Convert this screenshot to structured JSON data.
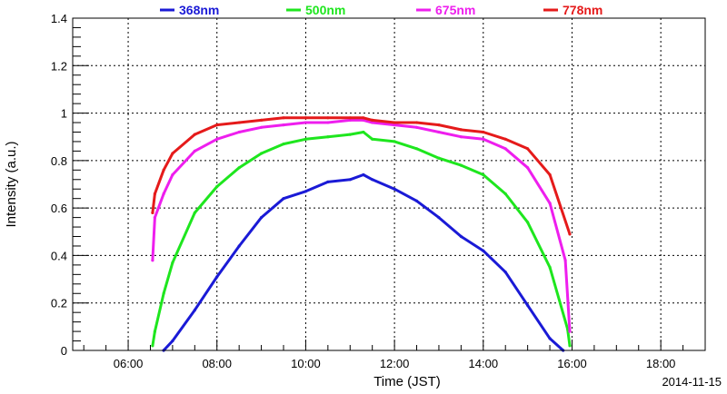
{
  "chart_data": {
    "type": "line",
    "xlabel": "Time (JST)",
    "ylabel": "Intensity (a.u.)",
    "date_label": "2014-11-15",
    "x_axis": {
      "min_hour": 4.75,
      "max_hour": 19.0,
      "ticks": [
        {
          "hour": 6,
          "label": "06:00"
        },
        {
          "hour": 8,
          "label": "08:00"
        },
        {
          "hour": 10,
          "label": "10:00"
        },
        {
          "hour": 12,
          "label": "12:00"
        },
        {
          "hour": 14,
          "label": "14:00"
        },
        {
          "hour": 16,
          "label": "16:00"
        },
        {
          "hour": 18,
          "label": "18:00"
        }
      ]
    },
    "y_axis": {
      "min": 0,
      "max": 1.4,
      "ticks": [
        {
          "value": 0,
          "label": "0"
        },
        {
          "value": 0.2,
          "label": "0.2"
        },
        {
          "value": 0.4,
          "label": "0.4"
        },
        {
          "value": 0.6,
          "label": "0.6"
        },
        {
          "value": 0.8,
          "label": "0.8"
        },
        {
          "value": 1.0,
          "label": "1"
        },
        {
          "value": 1.2,
          "label": "1.2"
        },
        {
          "value": 1.4,
          "label": "1.4"
        }
      ]
    },
    "grid": true,
    "legend_position": "top",
    "series": [
      {
        "name": "368nm",
        "color": "#1a1ad6",
        "points": [
          [
            6.8,
            0.0
          ],
          [
            7.0,
            0.04
          ],
          [
            7.5,
            0.17
          ],
          [
            8.0,
            0.31
          ],
          [
            8.5,
            0.44
          ],
          [
            9.0,
            0.56
          ],
          [
            9.5,
            0.64
          ],
          [
            10.0,
            0.67
          ],
          [
            10.5,
            0.71
          ],
          [
            11.0,
            0.72
          ],
          [
            11.3,
            0.74
          ],
          [
            11.5,
            0.72
          ],
          [
            12.0,
            0.68
          ],
          [
            12.5,
            0.63
          ],
          [
            13.0,
            0.56
          ],
          [
            13.5,
            0.48
          ],
          [
            14.0,
            0.42
          ],
          [
            14.5,
            0.33
          ],
          [
            15.0,
            0.19
          ],
          [
            15.5,
            0.05
          ],
          [
            15.8,
            0.0
          ]
        ]
      },
      {
        "name": "500nm",
        "color": "#1ee61e",
        "points": [
          [
            6.55,
            0.02
          ],
          [
            6.6,
            0.08
          ],
          [
            6.8,
            0.24
          ],
          [
            7.0,
            0.37
          ],
          [
            7.5,
            0.58
          ],
          [
            8.0,
            0.69
          ],
          [
            8.5,
            0.77
          ],
          [
            9.0,
            0.83
          ],
          [
            9.5,
            0.87
          ],
          [
            10.0,
            0.89
          ],
          [
            10.5,
            0.9
          ],
          [
            11.0,
            0.91
          ],
          [
            11.3,
            0.92
          ],
          [
            11.5,
            0.89
          ],
          [
            12.0,
            0.88
          ],
          [
            12.5,
            0.85
          ],
          [
            13.0,
            0.81
          ],
          [
            13.5,
            0.78
          ],
          [
            14.0,
            0.74
          ],
          [
            14.5,
            0.66
          ],
          [
            15.0,
            0.54
          ],
          [
            15.5,
            0.35
          ],
          [
            15.9,
            0.09
          ],
          [
            15.95,
            0.02
          ]
        ]
      },
      {
        "name": "675nm",
        "color": "#ee1eee",
        "points": [
          [
            6.55,
            0.38
          ],
          [
            6.6,
            0.56
          ],
          [
            6.8,
            0.66
          ],
          [
            7.0,
            0.74
          ],
          [
            7.5,
            0.84
          ],
          [
            8.0,
            0.89
          ],
          [
            8.5,
            0.92
          ],
          [
            9.0,
            0.94
          ],
          [
            9.5,
            0.95
          ],
          [
            10.0,
            0.96
          ],
          [
            10.5,
            0.96
          ],
          [
            11.0,
            0.97
          ],
          [
            11.3,
            0.97
          ],
          [
            11.5,
            0.96
          ],
          [
            12.0,
            0.95
          ],
          [
            12.5,
            0.94
          ],
          [
            13.0,
            0.92
          ],
          [
            13.5,
            0.9
          ],
          [
            14.0,
            0.89
          ],
          [
            14.5,
            0.85
          ],
          [
            15.0,
            0.77
          ],
          [
            15.5,
            0.62
          ],
          [
            15.85,
            0.38
          ],
          [
            15.95,
            0.08
          ]
        ]
      },
      {
        "name": "778nm",
        "color": "#e51a1a",
        "points": [
          [
            6.55,
            0.58
          ],
          [
            6.6,
            0.66
          ],
          [
            6.8,
            0.76
          ],
          [
            7.0,
            0.83
          ],
          [
            7.5,
            0.91
          ],
          [
            8.0,
            0.95
          ],
          [
            8.5,
            0.96
          ],
          [
            9.0,
            0.97
          ],
          [
            9.5,
            0.98
          ],
          [
            10.0,
            0.98
          ],
          [
            10.5,
            0.98
          ],
          [
            11.0,
            0.98
          ],
          [
            11.3,
            0.98
          ],
          [
            11.5,
            0.97
          ],
          [
            12.0,
            0.96
          ],
          [
            12.5,
            0.96
          ],
          [
            13.0,
            0.95
          ],
          [
            13.5,
            0.93
          ],
          [
            14.0,
            0.92
          ],
          [
            14.5,
            0.89
          ],
          [
            15.0,
            0.85
          ],
          [
            15.5,
            0.74
          ],
          [
            15.95,
            0.49
          ]
        ]
      }
    ]
  }
}
